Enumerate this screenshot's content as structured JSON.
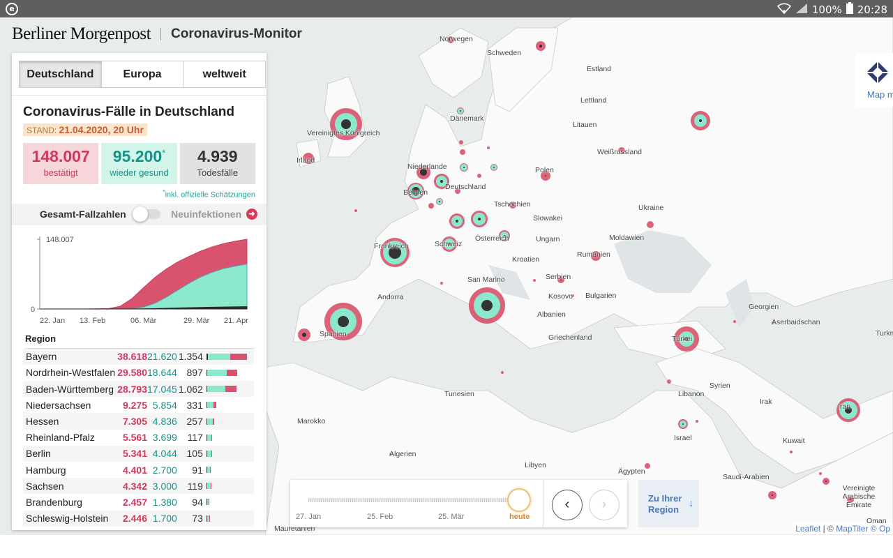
{
  "statusbar": {
    "app_icon": "e",
    "battery": "100%",
    "time": "20:28"
  },
  "header": {
    "brand": "Berliner Morgenpost",
    "title": "Coronavirus-Monitor"
  },
  "tabs": [
    {
      "label": "Deutschland",
      "active": true
    },
    {
      "label": "Europa",
      "active": false
    },
    {
      "label": "weltweit",
      "active": false
    }
  ],
  "panel": {
    "title": "Coronavirus-Fälle in Deutschland",
    "stand_label": "STAND:",
    "stand_value": "21.04.2020, 20 Uhr",
    "confirmed": "148.007",
    "confirmed_label": "bestätigt",
    "recovered": "95.200",
    "recovered_mark": "*",
    "recovered_label": "wieder gesund",
    "deaths": "4.939",
    "deaths_label": "Todesfälle",
    "footnote_mark": "*",
    "footnote": "inkl. offizielle Schätzungen",
    "toggle_left": "Gesamt-Fallzahlen",
    "toggle_right": "Neuinfektionen",
    "region_header": "Region"
  },
  "chart_data": {
    "type": "area",
    "x_ticks": [
      "22. Jan",
      "13. Feb",
      "06. Mär",
      "29. Mär",
      "21. Apr"
    ],
    "y_ticks": [
      "0",
      "148.007"
    ],
    "ylim": [
      0,
      148007
    ],
    "x_index": [
      0,
      10,
      20,
      30,
      35,
      40,
      45,
      50,
      55,
      60,
      65,
      70,
      75,
      80,
      85,
      90
    ],
    "series": [
      {
        "name": "bestätigt",
        "color": "#d9536e",
        "values": [
          0,
          16,
          16,
          1000,
          6000,
          22000,
          45000,
          67000,
          85000,
          100000,
          112000,
          123000,
          132000,
          139000,
          144000,
          148007
        ]
      },
      {
        "name": "wieder gesund",
        "color": "#8ce8cc",
        "values": [
          0,
          0,
          16,
          50,
          100,
          200,
          4000,
          12000,
          25000,
          40000,
          55000,
          68000,
          78000,
          86000,
          91000,
          95200
        ]
      },
      {
        "name": "Todesfälle",
        "color": "#333333",
        "values": [
          0,
          0,
          0,
          0,
          5,
          50,
          300,
          800,
          1500,
          2200,
          2800,
          3400,
          3900,
          4300,
          4600,
          4939
        ]
      }
    ]
  },
  "regions": [
    {
      "name": "Bayern",
      "confirmed": "38.618",
      "recovered": "21.620",
      "deaths": "1.354",
      "c": 38618,
      "r": 21620,
      "d": 1354
    },
    {
      "name": "Nordrhein-Westfalen",
      "confirmed": "29.580",
      "recovered": "18.644",
      "deaths": "897",
      "c": 29580,
      "r": 18644,
      "d": 897
    },
    {
      "name": "Baden-Württemberg",
      "confirmed": "28.793",
      "recovered": "17.045",
      "deaths": "1.062",
      "c": 28793,
      "r": 17045,
      "d": 1062
    },
    {
      "name": "Niedersachsen",
      "confirmed": "9.275",
      "recovered": "5.854",
      "deaths": "331",
      "c": 9275,
      "r": 5854,
      "d": 331
    },
    {
      "name": "Hessen",
      "confirmed": "7.305",
      "recovered": "4.836",
      "deaths": "257",
      "c": 7305,
      "r": 4836,
      "d": 257
    },
    {
      "name": "Rheinland-Pfalz",
      "confirmed": "5.561",
      "recovered": "3.699",
      "deaths": "117",
      "c": 5561,
      "r": 3699,
      "d": 117
    },
    {
      "name": "Berlin",
      "confirmed": "5.341",
      "recovered": "4.044",
      "deaths": "105",
      "c": 5341,
      "r": 4044,
      "d": 105
    },
    {
      "name": "Hamburg",
      "confirmed": "4.401",
      "recovered": "2.700",
      "deaths": "91",
      "c": 4401,
      "r": 2700,
      "d": 91
    },
    {
      "name": "Sachsen",
      "confirmed": "4.342",
      "recovered": "3.000",
      "deaths": "119",
      "c": 4342,
      "r": 3000,
      "d": 119
    },
    {
      "name": "Brandenburg",
      "confirmed": "2.457",
      "recovered": "1.380",
      "deaths": "94",
      "c": 2457,
      "r": 1380,
      "d": 94
    },
    {
      "name": "Schleswig-Holstein",
      "confirmed": "2.446",
      "recovered": "1.700",
      "deaths": "73",
      "c": 2446,
      "r": 1700,
      "d": 73
    }
  ],
  "timeline": {
    "labels": [
      "27. Jan",
      "25. Feb",
      "25. Mär"
    ],
    "now_label": "heute",
    "prev": "‹",
    "next": "›",
    "progress": 1.0
  },
  "zu_region": {
    "line1": "Zu Ihrer",
    "line2": "Region",
    "arrow": "↓"
  },
  "map_logo": {
    "text": "Map m"
  },
  "attribution": {
    "leaflet": "Leaflet",
    "sep": " | © ",
    "maptiler": "MapTiler",
    "rest": " © Op"
  },
  "map_labels": [
    {
      "text": "Norwegen"
    },
    {
      "text": "Schweden"
    },
    {
      "text": "Estland"
    },
    {
      "text": "Lettland"
    },
    {
      "text": "Dänemark"
    },
    {
      "text": "Litauen"
    },
    {
      "text": "Vereinigtes Königreich"
    },
    {
      "text": "Weißrussland"
    },
    {
      "text": "Irland"
    },
    {
      "text": "Niederlande"
    },
    {
      "text": "Polen"
    },
    {
      "text": "Deutschland"
    },
    {
      "text": "Belgien"
    },
    {
      "text": "Tschechien"
    },
    {
      "text": "Ukraine"
    },
    {
      "text": "Slowakei"
    },
    {
      "text": "Moldawien"
    },
    {
      "text": "Frankreich"
    },
    {
      "text": "Schweiz"
    },
    {
      "text": "Österreich"
    },
    {
      "text": "Ungarn"
    },
    {
      "text": "Kroatien"
    },
    {
      "text": "Rumänien"
    },
    {
      "text": "San Marino"
    },
    {
      "text": "Serbien"
    },
    {
      "text": "Andorra"
    },
    {
      "text": "Kosovo"
    },
    {
      "text": "Bulgarien"
    },
    {
      "text": "Georgien"
    },
    {
      "text": "Albanien"
    },
    {
      "text": "Aserbaidschan"
    },
    {
      "text": "Spanien"
    },
    {
      "text": "Griechenland"
    },
    {
      "text": "Türkei"
    },
    {
      "text": "Turkm"
    },
    {
      "text": "Syrien"
    },
    {
      "text": "Tunesien"
    },
    {
      "text": "Libanon"
    },
    {
      "text": "Irak"
    },
    {
      "text": "Iran"
    },
    {
      "text": "Marokko"
    },
    {
      "text": "Israel"
    },
    {
      "text": "Kuwait"
    },
    {
      "text": "Algerien"
    },
    {
      "text": "Libyen"
    },
    {
      "text": "Ägypten"
    },
    {
      "text": "Saudi-Arabien"
    },
    {
      "text": "Vereinigte Arabische Emirate"
    },
    {
      "text": "Mauretanien"
    },
    {
      "text": "Oman"
    }
  ]
}
